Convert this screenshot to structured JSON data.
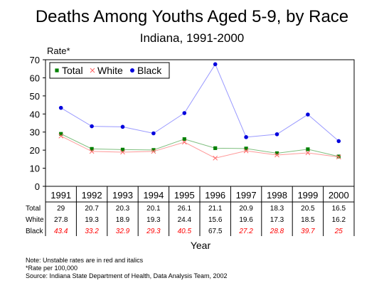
{
  "title": "Deaths Among Youths Aged 5-9, by Race",
  "subtitle": "Indiana, 1991-2000",
  "chart_data": {
    "type": "line",
    "title": "Deaths Among Youths Aged 5-9, by Race",
    "subtitle": "Indiana, 1991-2000",
    "ylabel": "Rate*",
    "xlabel": "Year",
    "ylim": [
      0,
      70
    ],
    "yticks": [
      0,
      10,
      20,
      30,
      40,
      50,
      60,
      70
    ],
    "categories": [
      "1991",
      "1992",
      "1993",
      "1994",
      "1995",
      "1996",
      "1997",
      "1998",
      "1999",
      "2000"
    ],
    "legend_position": "top-left",
    "grid": false,
    "series": [
      {
        "name": "Total",
        "color": "#008000",
        "line_color": "#7fbf7f",
        "marker": "square",
        "values": [
          29,
          20.7,
          20.3,
          20.1,
          26.1,
          21.1,
          20.9,
          18.3,
          20.5,
          16.5
        ],
        "labels": [
          "29",
          "20.7",
          "20.3",
          "20.1",
          "26.1",
          "21.1",
          "20.9",
          "18.3",
          "20.5",
          "16.5"
        ],
        "unstable": [
          false,
          false,
          false,
          false,
          false,
          false,
          false,
          false,
          false,
          false
        ]
      },
      {
        "name": "White",
        "color": "#ff6666",
        "line_color": "#ff9999",
        "marker": "x",
        "values": [
          27.8,
          19.3,
          18.9,
          19.3,
          24.4,
          15.6,
          19.6,
          17.3,
          18.5,
          16.2
        ],
        "labels": [
          "27.8",
          "19.3",
          "18.9",
          "19.3",
          "24.4",
          "15.6",
          "19.6",
          "17.3",
          "18.5",
          "16.2"
        ],
        "unstable": [
          false,
          false,
          false,
          false,
          false,
          false,
          false,
          false,
          false,
          false
        ]
      },
      {
        "name": "Black",
        "color": "#0000dd",
        "line_color": "#9999ff",
        "marker": "circle",
        "values": [
          43.4,
          33.2,
          32.9,
          29.3,
          40.5,
          67.5,
          27.2,
          28.8,
          39.7,
          25
        ],
        "labels": [
          "43.4",
          "33.2",
          "32.9",
          "29.3",
          "40.5",
          "67.5",
          "27.2",
          "28.8",
          "39.7",
          "25"
        ],
        "unstable": [
          true,
          true,
          true,
          true,
          true,
          false,
          true,
          true,
          true,
          true
        ]
      }
    ],
    "unstable_color": "#ff0000"
  },
  "footnotes": [
    "Note:  Unstable rates are in red and italics",
    "*Rate per 100,000",
    "Source:  Indiana State Department of Health, Data Analysis Team, 2002"
  ]
}
